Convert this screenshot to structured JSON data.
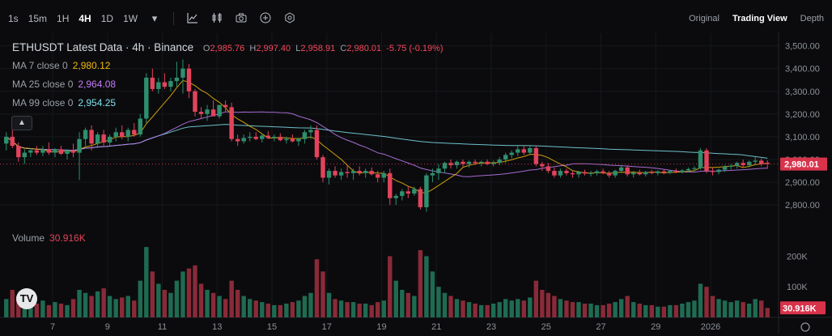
{
  "toolbar": {
    "timeframes": [
      "1s",
      "15m",
      "1H",
      "4H",
      "1D",
      "1W"
    ],
    "active_timeframe": "4H",
    "icons": [
      "chevron-down-icon",
      "indicators-icon",
      "candle-style-icon",
      "camera-icon",
      "add-icon",
      "settings-icon"
    ],
    "view_tabs": [
      "Original",
      "Trading View",
      "Depth"
    ],
    "active_view": "Trading View"
  },
  "legend": {
    "title": "ETHUSDT Latest Data · 4h · Binance",
    "ohlc": {
      "open": "2,985.76",
      "high": "2,997.40",
      "low": "2,958.91",
      "close": "2,980.01",
      "change": "-5.75 (-0.19%)"
    },
    "ma": [
      {
        "label": "MA 7 close 0",
        "value": "2,980.12",
        "color": "#f0b90b"
      },
      {
        "label": "MA 25 close 0",
        "value": "2,964.08",
        "color": "#c27cf5"
      },
      {
        "label": "MA 99 close 0",
        "value": "2,954.25",
        "color": "#7fe0ee"
      }
    ],
    "volume_label": "Volume",
    "volume_value": "30.916K"
  },
  "colors": {
    "up": "#2e8f6e",
    "down": "#e3435c",
    "up_vol": "#1f6b52",
    "down_vol": "#8a2a38",
    "price_tag": "#d9334c"
  },
  "chart_data": {
    "type": "candlestick",
    "symbol": "ETHUSDT",
    "interval": "4h",
    "exchange": "Binance",
    "price_axis": {
      "ticks": [
        "3,500.00",
        "3,400.00",
        "3,300.00",
        "3,200.00",
        "3,100.00",
        "3,000.00",
        "2,900.00",
        "2,800.00"
      ],
      "range": [
        2740,
        3520
      ]
    },
    "volume_axis": {
      "ticks": [
        "200K",
        "100K"
      ],
      "range": [
        0,
        270
      ]
    },
    "x_ticks": [
      "7",
      "9",
      "11",
      "13",
      "15",
      "17",
      "19",
      "21",
      "23",
      "25",
      "27",
      "29",
      "2026"
    ],
    "last_price": "2,980.01",
    "last_volume": "30.916K",
    "ohlc_rows": [
      [
        3070,
        3120,
        3040,
        3100,
        60
      ],
      [
        3100,
        3130,
        3050,
        3060,
        90
      ],
      [
        3060,
        3075,
        2990,
        3010,
        70
      ],
      [
        3010,
        3045,
        2980,
        3030,
        50
      ],
      [
        3030,
        3050,
        3010,
        3040,
        40
      ],
      [
        3040,
        3060,
        3020,
        3030,
        45
      ],
      [
        3030,
        3060,
        3015,
        3045,
        55
      ],
      [
        3045,
        3075,
        3020,
        3030,
        40
      ],
      [
        3030,
        3050,
        3010,
        3045,
        50
      ],
      [
        3045,
        3060,
        3020,
        3025,
        45
      ],
      [
        3025,
        3045,
        3000,
        3040,
        40
      ],
      [
        3040,
        3070,
        3010,
        3030,
        60
      ],
      [
        3030,
        3120,
        2910,
        3090,
        90
      ],
      [
        3090,
        3140,
        3060,
        3130,
        80
      ],
      [
        3130,
        3150,
        3040,
        3070,
        70
      ],
      [
        3070,
        3120,
        3050,
        3110,
        85
      ],
      [
        3110,
        3130,
        3060,
        3075,
        95
      ],
      [
        3075,
        3110,
        3060,
        3100,
        70
      ],
      [
        3100,
        3140,
        3080,
        3120,
        60
      ],
      [
        3120,
        3150,
        3090,
        3100,
        65
      ],
      [
        3100,
        3140,
        3080,
        3130,
        70
      ],
      [
        3130,
        3160,
        3100,
        3110,
        55
      ],
      [
        3110,
        3200,
        3100,
        3180,
        120
      ],
      [
        3180,
        3380,
        3160,
        3360,
        230
      ],
      [
        3360,
        3400,
        3300,
        3310,
        150
      ],
      [
        3310,
        3360,
        3290,
        3340,
        110
      ],
      [
        3340,
        3380,
        3310,
        3320,
        90
      ],
      [
        3320,
        3360,
        3300,
        3345,
        80
      ],
      [
        3345,
        3430,
        3320,
        3360,
        120
      ],
      [
        3360,
        3440,
        3290,
        3400,
        150
      ],
      [
        3400,
        3420,
        3270,
        3300,
        160
      ],
      [
        3300,
        3310,
        3190,
        3210,
        170
      ],
      [
        3210,
        3230,
        3180,
        3200,
        110
      ],
      [
        3200,
        3240,
        3170,
        3220,
        90
      ],
      [
        3220,
        3260,
        3190,
        3190,
        80
      ],
      [
        3190,
        3230,
        3180,
        3240,
        70
      ],
      [
        3240,
        3260,
        3210,
        3230,
        60
      ],
      [
        3230,
        3250,
        3080,
        3090,
        120
      ],
      [
        3090,
        3110,
        3060,
        3080,
        90
      ],
      [
        3080,
        3110,
        3070,
        3095,
        70
      ],
      [
        3095,
        3120,
        3080,
        3100,
        60
      ],
      [
        3100,
        3120,
        3085,
        3090,
        55
      ],
      [
        3090,
        3115,
        3075,
        3105,
        50
      ],
      [
        3105,
        3125,
        3090,
        3095,
        45
      ],
      [
        3095,
        3110,
        3080,
        3100,
        40
      ],
      [
        3100,
        3115,
        3080,
        3085,
        40
      ],
      [
        3085,
        3100,
        3070,
        3090,
        45
      ],
      [
        3090,
        3110,
        3075,
        3080,
        50
      ],
      [
        3080,
        3095,
        3060,
        3090,
        55
      ],
      [
        3090,
        3130,
        3070,
        3120,
        70
      ],
      [
        3120,
        3150,
        3090,
        3130,
        80
      ],
      [
        3130,
        3150,
        3000,
        3010,
        190
      ],
      [
        3010,
        3020,
        2900,
        2920,
        150
      ],
      [
        2920,
        2960,
        2890,
        2950,
        80
      ],
      [
        2950,
        2970,
        2920,
        2930,
        60
      ],
      [
        2930,
        2960,
        2910,
        2945,
        55
      ],
      [
        2945,
        2975,
        2920,
        2940,
        50
      ],
      [
        2940,
        2960,
        2910,
        2950,
        50
      ],
      [
        2950,
        2970,
        2930,
        2940,
        45
      ],
      [
        2940,
        2960,
        2920,
        2950,
        45
      ],
      [
        2950,
        2965,
        2930,
        2935,
        40
      ],
      [
        2935,
        2950,
        2900,
        2920,
        50
      ],
      [
        2920,
        2950,
        2900,
        2940,
        55
      ],
      [
        2940,
        2960,
        2800,
        2830,
        200
      ],
      [
        2830,
        2850,
        2800,
        2840,
        120
      ],
      [
        2840,
        2870,
        2820,
        2860,
        90
      ],
      [
        2860,
        2880,
        2830,
        2850,
        80
      ],
      [
        2850,
        2880,
        2840,
        2870,
        70
      ],
      [
        2870,
        2880,
        2780,
        2790,
        220
      ],
      [
        2790,
        2940,
        2770,
        2930,
        200
      ],
      [
        2930,
        2960,
        2900,
        2940,
        150
      ],
      [
        2940,
        2980,
        2910,
        2960,
        100
      ],
      [
        2960,
        2990,
        2940,
        2985,
        80
      ],
      [
        2985,
        3000,
        2960,
        2975,
        70
      ],
      [
        2975,
        2995,
        2960,
        2990,
        60
      ],
      [
        2990,
        3000,
        2970,
        2980,
        55
      ],
      [
        2980,
        2995,
        2965,
        2990,
        50
      ],
      [
        2990,
        3000,
        2975,
        2985,
        45
      ],
      [
        2985,
        2995,
        2970,
        2990,
        40
      ],
      [
        2990,
        3000,
        2975,
        2980,
        40
      ],
      [
        2980,
        2995,
        2970,
        2985,
        45
      ],
      [
        2985,
        3010,
        2975,
        3000,
        50
      ],
      [
        3000,
        3030,
        2985,
        3020,
        60
      ],
      [
        3020,
        3040,
        3005,
        3030,
        55
      ],
      [
        3030,
        3060,
        3015,
        3045,
        60
      ],
      [
        3045,
        3060,
        3020,
        3030,
        55
      ],
      [
        3030,
        3060,
        3020,
        3050,
        65
      ],
      [
        3050,
        3060,
        2970,
        2980,
        120
      ],
      [
        2980,
        2990,
        2950,
        2970,
        90
      ],
      [
        2970,
        2985,
        2940,
        2950,
        80
      ],
      [
        2950,
        2965,
        2920,
        2930,
        70
      ],
      [
        2930,
        2960,
        2920,
        2950,
        60
      ],
      [
        2950,
        2960,
        2930,
        2940,
        55
      ],
      [
        2940,
        2950,
        2920,
        2935,
        50
      ],
      [
        2935,
        2950,
        2920,
        2945,
        50
      ],
      [
        2945,
        2955,
        2930,
        2938,
        45
      ],
      [
        2938,
        2950,
        2925,
        2940,
        45
      ],
      [
        2940,
        2955,
        2930,
        2948,
        40
      ],
      [
        2948,
        2960,
        2935,
        2940,
        40
      ],
      [
        2940,
        2950,
        2920,
        2930,
        45
      ],
      [
        2930,
        2955,
        2920,
        2950,
        50
      ],
      [
        2950,
        2975,
        2940,
        2965,
        60
      ],
      [
        2965,
        2975,
        2925,
        2935,
        70
      ],
      [
        2935,
        2950,
        2920,
        2942,
        50
      ],
      [
        2942,
        2955,
        2930,
        2935,
        45
      ],
      [
        2935,
        2950,
        2925,
        2945,
        40
      ],
      [
        2945,
        2955,
        2935,
        2940,
        40
      ],
      [
        2940,
        2952,
        2930,
        2948,
        35
      ],
      [
        2948,
        2955,
        2935,
        2942,
        35
      ],
      [
        2942,
        2955,
        2935,
        2950,
        40
      ],
      [
        2950,
        2960,
        2940,
        2945,
        40
      ],
      [
        2945,
        2958,
        2938,
        2952,
        45
      ],
      [
        2952,
        2965,
        2945,
        2958,
        50
      ],
      [
        2958,
        2970,
        2950,
        2962,
        55
      ],
      [
        2962,
        3050,
        2955,
        3040,
        110
      ],
      [
        3040,
        3050,
        2940,
        2950,
        100
      ],
      [
        2950,
        2965,
        2930,
        2945,
        70
      ],
      [
        2945,
        2960,
        2935,
        2955,
        60
      ],
      [
        2955,
        2975,
        2945,
        2968,
        55
      ],
      [
        2968,
        2980,
        2955,
        2972,
        50
      ],
      [
        2972,
        2990,
        2960,
        2985,
        55
      ],
      [
        2985,
        3000,
        2965,
        2975,
        50
      ],
      [
        2975,
        2995,
        2965,
        2990,
        45
      ],
      [
        2990,
        3010,
        2975,
        2995,
        60
      ],
      [
        2995,
        3005,
        2970,
        2980,
        55
      ],
      [
        2986,
        2997,
        2959,
        2980,
        31
      ]
    ],
    "ohlc_row_fields": [
      "open",
      "high",
      "low",
      "close",
      "volume_k"
    ]
  }
}
